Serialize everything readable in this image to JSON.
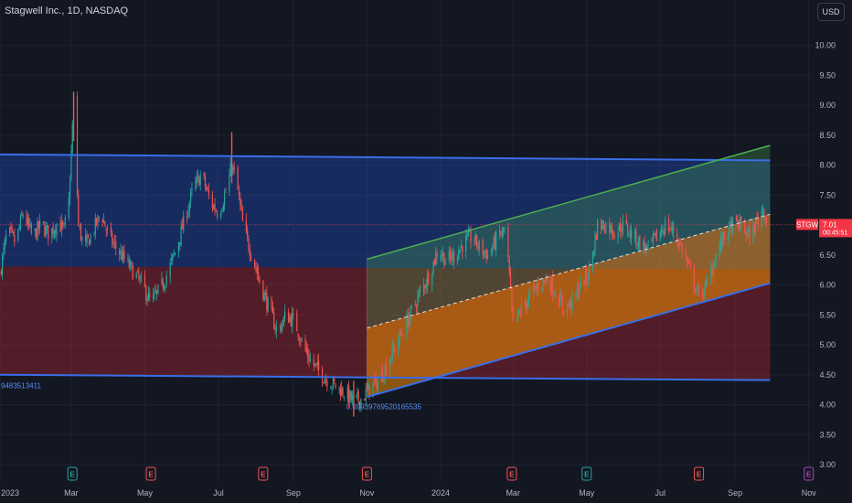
{
  "header": {
    "title": "Stagwell Inc., 1D, NASDAQ",
    "currency": "USD"
  },
  "colors": {
    "background": "#131722",
    "up": "#26a69a",
    "down": "#ef5350",
    "channel_line": "#3a6ee8",
    "upper_zone": "rgba(41,98,255,0.28)",
    "lower_zone": "rgba(178,40,51,0.40)",
    "rising_upper_line": "#4caf50",
    "rising_upper_zone": "rgba(76,175,80,0.28)",
    "rising_lower_zone": "rgba(255,152,0,0.50)",
    "price_line": "#f23645"
  },
  "chart_data": {
    "type": "candlestick",
    "symbol": "STGW",
    "interval": "1D",
    "exchange": "NASDAQ",
    "ylim": [
      3.0,
      10.3
    ],
    "yticks": [
      "10.00",
      "9.50",
      "9.00",
      "8.50",
      "8.00",
      "7.50",
      "7.00",
      "6.50",
      "6.00",
      "5.50",
      "5.00",
      "4.50",
      "4.00",
      "3.50",
      "3.00"
    ],
    "xlim": [
      "2023-01-01",
      "2024-11-05"
    ],
    "xticks": [
      {
        "label": "2023",
        "date": "2023-01-01"
      },
      {
        "label": "Mar",
        "date": "2023-03-01"
      },
      {
        "label": "May",
        "date": "2023-05-01"
      },
      {
        "label": "Jul",
        "date": "2023-07-01"
      },
      {
        "label": "Sep",
        "date": "2023-09-01"
      },
      {
        "label": "Nov",
        "date": "2023-11-01"
      },
      {
        "label": "2024",
        "date": "2024-01-01"
      },
      {
        "label": "Mar",
        "date": "2024-03-01"
      },
      {
        "label": "May",
        "date": "2024-05-01"
      },
      {
        "label": "Jul",
        "date": "2024-07-01"
      },
      {
        "label": "Sep",
        "date": "2024-09-01"
      },
      {
        "label": "Nov",
        "date": "2024-11-01"
      }
    ],
    "price_path": [
      [
        "2023-01-01",
        6.2
      ],
      [
        "2023-01-07",
        6.9
      ],
      [
        "2023-01-14",
        6.7
      ],
      [
        "2023-01-20",
        7.2
      ],
      [
        "2023-01-28",
        6.8
      ],
      [
        "2023-02-04",
        7.0
      ],
      [
        "2023-02-11",
        6.85
      ],
      [
        "2023-02-18",
        7.05
      ],
      [
        "2023-02-23",
        6.9
      ],
      [
        "2023-02-27",
        7.4
      ],
      [
        "2023-03-01",
        8.2
      ],
      [
        "2023-03-03",
        9.1
      ],
      [
        "2023-03-07",
        7.0
      ],
      [
        "2023-03-12",
        6.6
      ],
      [
        "2023-03-19",
        6.9
      ],
      [
        "2023-03-26",
        7.2
      ],
      [
        "2023-04-01",
        6.8
      ],
      [
        "2023-04-08",
        6.6
      ],
      [
        "2023-04-15",
        6.4
      ],
      [
        "2023-04-22",
        6.2
      ],
      [
        "2023-04-29",
        6.0
      ],
      [
        "2023-05-06",
        5.7
      ],
      [
        "2023-05-13",
        5.9
      ],
      [
        "2023-05-20",
        6.2
      ],
      [
        "2023-05-27",
        6.6
      ],
      [
        "2023-06-03",
        7.1
      ],
      [
        "2023-06-10",
        7.6
      ],
      [
        "2023-06-17",
        7.85
      ],
      [
        "2023-06-24",
        7.4
      ],
      [
        "2023-07-01",
        7.2
      ],
      [
        "2023-07-08",
        7.6
      ],
      [
        "2023-07-12",
        8.0
      ],
      [
        "2023-07-16",
        7.7
      ],
      [
        "2023-07-22",
        6.9
      ],
      [
        "2023-07-29",
        6.5
      ],
      [
        "2023-08-05",
        6.0
      ],
      [
        "2023-08-12",
        5.6
      ],
      [
        "2023-08-19",
        5.2
      ],
      [
        "2023-08-26",
        5.5
      ],
      [
        "2023-09-02",
        5.4
      ],
      [
        "2023-09-09",
        5.0
      ],
      [
        "2023-09-16",
        4.7
      ],
      [
        "2023-09-23",
        4.55
      ],
      [
        "2023-09-30",
        4.4
      ],
      [
        "2023-10-07",
        4.3
      ],
      [
        "2023-10-14",
        4.2
      ],
      [
        "2023-10-21",
        4.05
      ],
      [
        "2023-10-28",
        4.1
      ],
      [
        "2023-11-04",
        4.3
      ],
      [
        "2023-11-11",
        4.4
      ],
      [
        "2023-11-18",
        4.7
      ],
      [
        "2023-11-25",
        5.0
      ],
      [
        "2023-12-02",
        5.3
      ],
      [
        "2023-12-09",
        5.6
      ],
      [
        "2023-12-16",
        5.9
      ],
      [
        "2023-12-23",
        6.2
      ],
      [
        "2023-12-30",
        6.6
      ],
      [
        "2024-01-06",
        6.4
      ],
      [
        "2024-01-13",
        6.5
      ],
      [
        "2024-01-20",
        6.7
      ],
      [
        "2024-01-27",
        6.8
      ],
      [
        "2024-02-03",
        6.6
      ],
      [
        "2024-02-10",
        6.5
      ],
      [
        "2024-02-17",
        6.8
      ],
      [
        "2024-02-24",
        6.9
      ],
      [
        "2024-03-01",
        5.3
      ],
      [
        "2024-03-08",
        5.6
      ],
      [
        "2024-03-15",
        5.8
      ],
      [
        "2024-03-22",
        6.0
      ],
      [
        "2024-03-29",
        6.1
      ],
      [
        "2024-04-05",
        5.9
      ],
      [
        "2024-04-12",
        5.6
      ],
      [
        "2024-04-19",
        5.7
      ],
      [
        "2024-04-26",
        6.0
      ],
      [
        "2024-05-03",
        6.2
      ],
      [
        "2024-05-10",
        7.0
      ],
      [
        "2024-05-17",
        7.0
      ],
      [
        "2024-05-24",
        6.9
      ],
      [
        "2024-05-31",
        7.0
      ],
      [
        "2024-06-07",
        6.85
      ],
      [
        "2024-06-14",
        6.7
      ],
      [
        "2024-06-21",
        6.6
      ],
      [
        "2024-06-28",
        6.8
      ],
      [
        "2024-07-05",
        7.0
      ],
      [
        "2024-07-12",
        6.9
      ],
      [
        "2024-07-19",
        6.6
      ],
      [
        "2024-07-26",
        6.2
      ],
      [
        "2024-08-02",
        5.8
      ],
      [
        "2024-08-09",
        6.0
      ],
      [
        "2024-08-16",
        6.5
      ],
      [
        "2024-08-23",
        6.8
      ],
      [
        "2024-08-30",
        7.0
      ],
      [
        "2024-09-06",
        7.0
      ],
      [
        "2024-09-13",
        6.8
      ],
      [
        "2024-09-20",
        7.1
      ],
      [
        "2024-09-24",
        7.3
      ],
      [
        "2024-09-28",
        7.01
      ]
    ],
    "spikes": [
      {
        "date": "2023-03-03",
        "high": 9.22,
        "low": 8.4
      },
      {
        "date": "2023-07-12",
        "high": 8.55,
        "low": 7.7
      },
      {
        "date": "2023-10-21",
        "high": 4.4,
        "low": 3.8
      }
    ],
    "horizontal_channel": {
      "upper": [
        [
          "2023-01-01",
          8.18
        ],
        [
          "2024-09-30",
          8.08
        ]
      ],
      "middle": [
        [
          "2023-01-01",
          6.31
        ],
        [
          "2024-09-30",
          6.26
        ]
      ],
      "lower": [
        [
          "2023-01-01",
          4.5
        ],
        [
          "2024-09-30",
          4.41
        ]
      ]
    },
    "rising_channel": {
      "start": "2023-11-01",
      "end": "2024-09-30",
      "upper": [
        6.43,
        8.33
      ],
      "middle": [
        5.28,
        7.18
      ],
      "lower": [
        4.13,
        6.03
      ]
    },
    "last_price": {
      "symbol": "STGW",
      "value": "7.01",
      "sub": "00:45:51"
    },
    "annotations": [
      {
        "text": "9483513411",
        "date": "2023-01-01",
        "y": 4.32
      },
      {
        "text": "0.69939769520165535",
        "date": "2023-10-14",
        "y": 3.97
      }
    ],
    "events": [
      {
        "type": "E",
        "color": "#26a69a",
        "date": "2023-03-02"
      },
      {
        "type": "E",
        "color": "#ef5350",
        "date": "2023-05-06"
      },
      {
        "type": "E",
        "color": "#ef5350",
        "date": "2023-08-07"
      },
      {
        "type": "E",
        "color": "#ef5350",
        "date": "2023-11-01"
      },
      {
        "type": "E",
        "color": "#ef5350",
        "date": "2024-02-29"
      },
      {
        "type": "E",
        "color": "#26a69a",
        "date": "2024-05-01"
      },
      {
        "type": "E",
        "color": "#ef5350",
        "date": "2024-08-02"
      },
      {
        "type": "E",
        "color": "#ab47bc",
        "date": "2024-11-01"
      }
    ]
  }
}
